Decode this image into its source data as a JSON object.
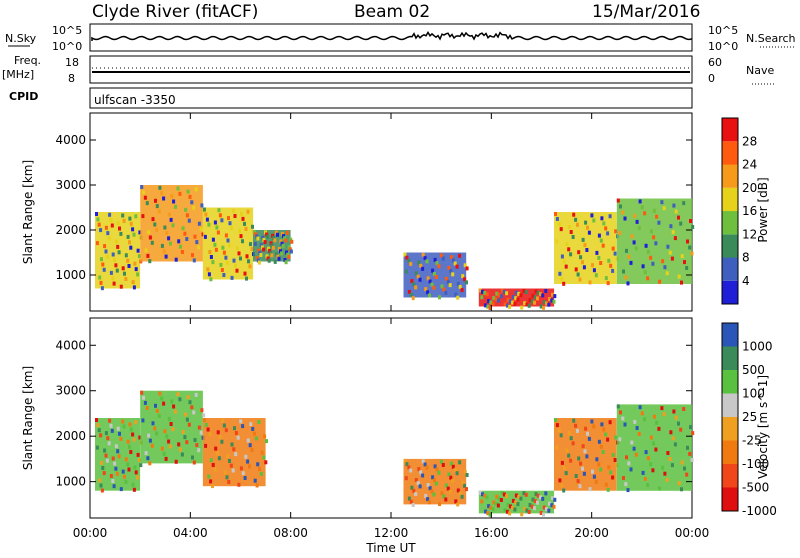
{
  "header": {
    "station": "Clyde River (fitACF)",
    "beam": "Beam 02",
    "date": "15/Mar/2016"
  },
  "top_panels": {
    "nsky_label": "N.Sky",
    "nsky_ticks": [
      "10^5",
      "10^0"
    ],
    "nsearch_label": "N.Search",
    "nsearch_ticks": [
      "10^5",
      "10^0"
    ],
    "freq_label": "Freq.",
    "freq_unit": "[MHz]",
    "freq_ticks": [
      "18",
      "8"
    ],
    "nave_label": "Nave",
    "nave_ticks": [
      "60",
      "0"
    ],
    "cpid_label": "CPID",
    "cpid_value": "ulfscan -3350"
  },
  "colors": {
    "power": [
      "#1f1fd8",
      "#3f5fbf",
      "#3a8a5a",
      "#6fbf3f",
      "#e6d21a",
      "#f59a1a",
      "#ff5a10",
      "#e81010"
    ],
    "velocity": [
      "#e00f0f",
      "#f0461a",
      "#f07a10",
      "#f0a020",
      "#c8c8c8",
      "#5ac040",
      "#3a8a5a",
      "#2a56b8"
    ]
  },
  "chart_data": [
    {
      "type": "heatmap",
      "panel": "power",
      "ylabel": "Slant Range [km]",
      "yticks": [
        "1000",
        "2000",
        "3000",
        "4000"
      ],
      "ylim": [
        200,
        4600
      ],
      "xticks": [
        "00:00",
        "04:00",
        "08:00",
        "12:00",
        "16:00",
        "20:00",
        "00:00"
      ],
      "xlim": [
        0,
        24
      ],
      "colorbar_label": "Power [dB]",
      "colorbar_ticks": [
        "4",
        "8",
        "12",
        "16",
        "20",
        "24",
        "28"
      ],
      "colorbar_range": [
        0,
        32
      ],
      "regions": [
        {
          "t_start": 0.2,
          "t_end": 2.0,
          "r_start": 700,
          "r_end": 2400,
          "value": 18
        },
        {
          "t_start": 2.0,
          "t_end": 4.5,
          "r_start": 1300,
          "r_end": 3000,
          "value": 22
        },
        {
          "t_start": 4.5,
          "t_end": 6.5,
          "r_start": 900,
          "r_end": 2500,
          "value": 16
        },
        {
          "t_start": 6.5,
          "t_end": 8.0,
          "r_start": 1300,
          "r_end": 2000,
          "value": 10
        },
        {
          "t_start": 12.5,
          "t_end": 15.0,
          "r_start": 500,
          "r_end": 1500,
          "value": 6
        },
        {
          "t_start": 15.5,
          "t_end": 18.5,
          "r_start": 300,
          "r_end": 700,
          "value": 28
        },
        {
          "t_start": 18.5,
          "t_end": 21.0,
          "r_start": 800,
          "r_end": 2400,
          "value": 16
        },
        {
          "t_start": 21.0,
          "t_end": 24.0,
          "r_start": 800,
          "r_end": 2700,
          "value": 12
        }
      ]
    },
    {
      "type": "heatmap",
      "panel": "velocity",
      "ylabel": "Slant Range [km]",
      "yticks": [
        "1000",
        "2000",
        "3000",
        "4000"
      ],
      "ylim": [
        200,
        4600
      ],
      "xticks": [
        "00:00",
        "04:00",
        "08:00",
        "12:00",
        "16:00",
        "20:00",
        "00:00"
      ],
      "xlim": [
        0,
        24
      ],
      "xlabel": "Time UT",
      "colorbar_label": "Velocity [m s^-1]",
      "colorbar_ticks": [
        "1000",
        "500",
        "100",
        "25",
        "-25",
        "-100",
        "-500",
        "-1000"
      ],
      "regions": [
        {
          "t_start": 0.2,
          "t_end": 2.0,
          "r_start": 800,
          "r_end": 2400,
          "value": 100
        },
        {
          "t_start": 2.0,
          "t_end": 4.5,
          "r_start": 1400,
          "r_end": 3000,
          "value": 60
        },
        {
          "t_start": 4.5,
          "t_end": 7.0,
          "r_start": 900,
          "r_end": 2400,
          "value": -300
        },
        {
          "t_start": 12.5,
          "t_end": 15.0,
          "r_start": 500,
          "r_end": 1500,
          "value": -200
        },
        {
          "t_start": 15.5,
          "t_end": 18.5,
          "r_start": 300,
          "r_end": 800,
          "value": 80
        },
        {
          "t_start": 18.5,
          "t_end": 21.0,
          "r_start": 800,
          "r_end": 2400,
          "value": -400
        },
        {
          "t_start": 21.0,
          "t_end": 24.0,
          "r_start": 800,
          "r_end": 2700,
          "value": 30
        }
      ]
    }
  ]
}
